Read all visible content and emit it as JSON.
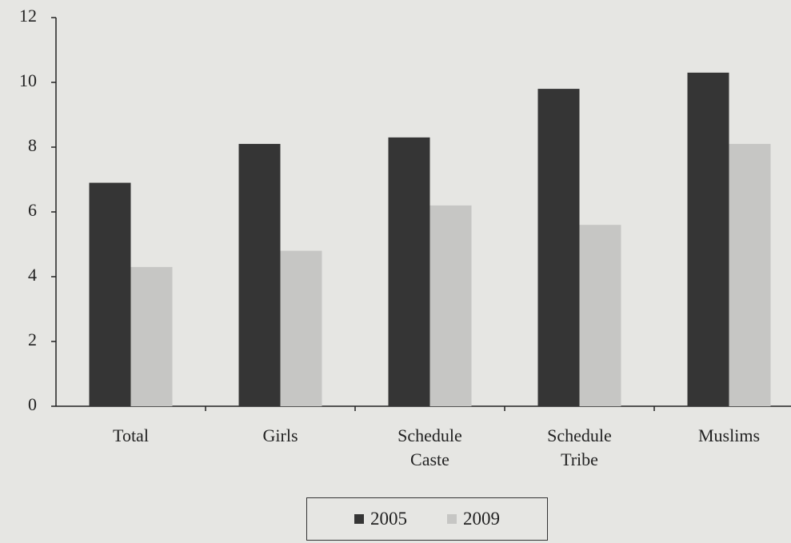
{
  "chart_data": {
    "type": "bar",
    "categories": [
      "Total",
      "Girls",
      "Schedule Caste",
      "Schedule Tribe",
      "Muslims"
    ],
    "series": [
      {
        "name": "2005",
        "color": "#353535",
        "values": [
          6.9,
          8.1,
          8.3,
          9.8,
          10.3
        ]
      },
      {
        "name": "2009",
        "color": "#c6c6c4",
        "values": [
          4.3,
          4.8,
          6.2,
          5.6,
          8.1
        ]
      }
    ],
    "ylim": [
      0,
      12
    ],
    "yticks": [
      0,
      2,
      4,
      6,
      8,
      10,
      12
    ],
    "grid": false,
    "legend": "bottom"
  }
}
